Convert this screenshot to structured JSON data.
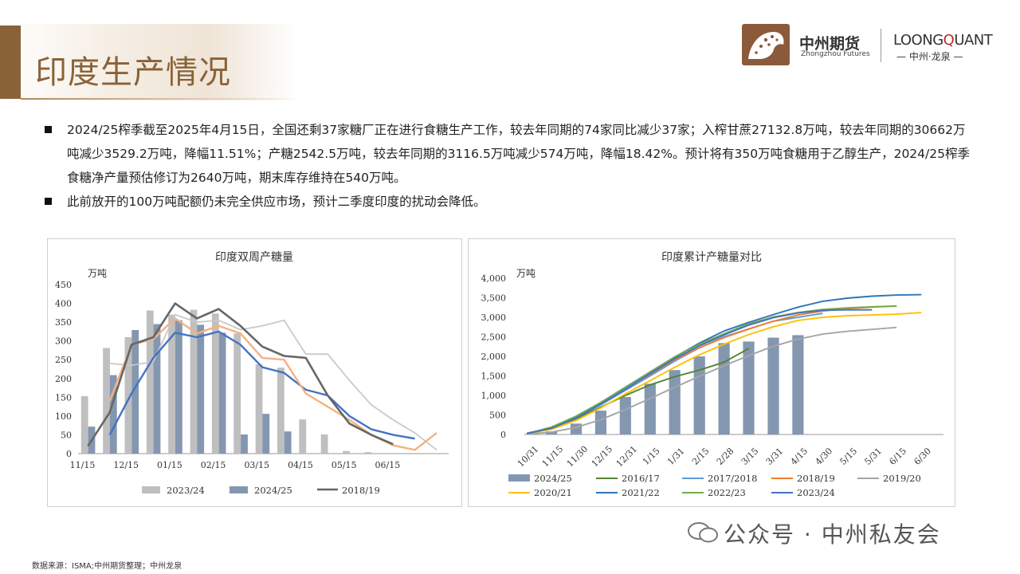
{
  "page": {
    "title": "印度生产情况",
    "logo_cn": "中州期货",
    "logo_en": "Zhongzhou Futures",
    "lq_name_a": "LOONG",
    "lq_name_b": "Q",
    "lq_name_c": "UANT",
    "lq_sub": "— 中州·龙泉 —",
    "source": "数据来源：ISMA;中州期货整理；中州龙泉",
    "watermark": "公众号 · 中州私友会"
  },
  "bullets": [
    "2024/25榨季截至2025年4月15日，全国还剩37家糖厂正在进行食糖生产工作，较去年同期的74家同比减少37家；入榨甘蔗27132.8万吨，较去年同期的30662万吨减少3529.2万吨，降幅11.51%；产糖2542.5万吨，较去年同期的3116.5万吨减少574万吨，降幅18.42%。预计将有350万吨食糖用于乙醇生产，2024/25榨季食糖净产量预估修订为2640万吨，期末库存维持在540万吨。",
    "此前放开的100万吨配额仍未完全供应市场，预计二季度印度的扰动会降低。"
  ],
  "colors": {
    "brand": "#8a6238",
    "bar_light": "#bfbfbf",
    "bar_blue": "#8497b0",
    "s1819": "#666666",
    "s2021": "#4472c4",
    "s2122": "#f4b183",
    "s1920": "#c9c9c9",
    "c1617": "#548235",
    "c1718": "#5b9bd5",
    "c1819": "#ed7d31",
    "c1920": "#a5a5a5",
    "c2021": "#ffc000",
    "c2122": "#2e75b6",
    "c2223": "#70ad47",
    "c2324": "#4472c4"
  },
  "chart_data": [
    {
      "type": "bar",
      "title": "印度双周产糖量",
      "ylabel": "万吨",
      "ylim": [
        0,
        450
      ],
      "yticks": [
        "0",
        "50",
        "100",
        "150",
        "200",
        "250",
        "300",
        "350",
        "400",
        "450"
      ],
      "xticks": [
        "11/15",
        "12/15",
        "01/15",
        "02/15",
        "03/15",
        "04/15",
        "05/15",
        "06/15"
      ],
      "legend": [
        "2023/24",
        "2024/25",
        "2018/19"
      ],
      "bar_series": [
        {
          "name": "2023/24",
          "values": [
            153,
            281,
            310,
            381,
            370,
            383,
            373,
            320,
            238,
            229,
            91,
            51,
            7,
            4
          ]
        },
        {
          "name": "2024/25",
          "values": [
            72,
            209,
            329,
            345,
            355,
            343,
            322,
            51,
            106,
            59,
            null,
            null,
            null,
            null
          ]
        }
      ],
      "line_series": [
        {
          "name": "2018/19",
          "values": [
            20,
            110,
            290,
            310,
            400,
            360,
            385,
            340,
            285,
            260,
            255,
            155,
            80,
            50,
            25,
            null
          ]
        },
        {
          "name": "",
          "values": [
            null,
            50,
            160,
            255,
            322,
            310,
            325,
            290,
            230,
            215,
            170,
            155,
            100,
            65,
            50,
            40
          ]
        },
        {
          "name": "",
          "values": [
            null,
            140,
            290,
            305,
            360,
            320,
            340,
            320,
            255,
            250,
            160,
            125,
            90,
            50,
            22,
            10,
            55
          ]
        },
        {
          "name": "",
          "values": [
            null,
            240,
            235,
            245,
            370,
            350,
            355,
            330,
            340,
            355,
            265,
            265,
            195,
            130,
            90,
            55,
            10
          ]
        }
      ]
    },
    {
      "type": "bar",
      "title": "印度累计产糖量对比",
      "ylabel": "万吨",
      "ylim": [
        0,
        4000
      ],
      "yticks": [
        "0",
        "500",
        "1,000",
        "1,500",
        "2,000",
        "2,500",
        "3,000",
        "3,500",
        "4,000"
      ],
      "categories": [
        "10/31",
        "11/15",
        "11/30",
        "12/15",
        "12/31",
        "1/15",
        "1/31",
        "2/15",
        "2/28",
        "3/15",
        "3/31",
        "4/15",
        "4/30",
        "5/15",
        "5/31",
        "6/15",
        "6/30"
      ],
      "bars": {
        "name": "2024/25",
        "values": [
          null,
          80,
          280,
          610,
          960,
          1300,
          1650,
          2000,
          2340,
          2380,
          2480,
          2542,
          null,
          null,
          null,
          null,
          null
        ]
      },
      "series": [
        {
          "name": "2016/17",
          "values": [
            30,
            160,
            400,
            700,
            1000,
            1270,
            1480,
            1650,
            1850,
            2200,
            null,
            null,
            null,
            null,
            null,
            null,
            null
          ]
        },
        {
          "name": "2017/2018",
          "values": [
            20,
            150,
            420,
            760,
            1130,
            1500,
            1880,
            2220,
            2500,
            2700,
            2900,
            3000,
            3100,
            null,
            null,
            null,
            null
          ]
        },
        {
          "name": "2018/19",
          "values": [
            30,
            170,
            450,
            800,
            1170,
            1540,
            1910,
            2220,
            2480,
            2700,
            2900,
            3060,
            3160,
            3220,
            3260,
            3290,
            null
          ]
        },
        {
          "name": "2019/20",
          "values": [
            10,
            60,
            180,
            380,
            640,
            920,
            1210,
            1490,
            1760,
            2020,
            2260,
            2440,
            2570,
            2640,
            2690,
            2740,
            null
          ]
        },
        {
          "name": "2020/21",
          "values": [
            20,
            130,
            360,
            680,
            1040,
            1380,
            1720,
            2040,
            2310,
            2560,
            2760,
            2920,
            3000,
            3040,
            3060,
            3080,
            3120
          ]
        },
        {
          "name": "2021/22",
          "values": [
            30,
            170,
            450,
            820,
            1210,
            1600,
            1980,
            2340,
            2650,
            2870,
            3070,
            3260,
            3410,
            3490,
            3540,
            3570,
            3580
          ]
        },
        {
          "name": "2022/23",
          "values": [
            20,
            190,
            470,
            820,
            1200,
            1600,
            1990,
            2310,
            2580,
            2830,
            3010,
            3120,
            3200,
            3240,
            3270,
            3290,
            null
          ]
        },
        {
          "name": "2023/24",
          "values": [
            20,
            160,
            420,
            780,
            1160,
            1560,
            1940,
            2270,
            2550,
            2800,
            2990,
            3110,
            3180,
            3190,
            3190,
            null,
            null
          ]
        }
      ],
      "legend": [
        "2024/25",
        "2016/17",
        "2017/2018",
        "2018/19",
        "2019/20",
        "2020/21",
        "2021/22",
        "2022/23",
        "2023/24"
      ]
    }
  ]
}
